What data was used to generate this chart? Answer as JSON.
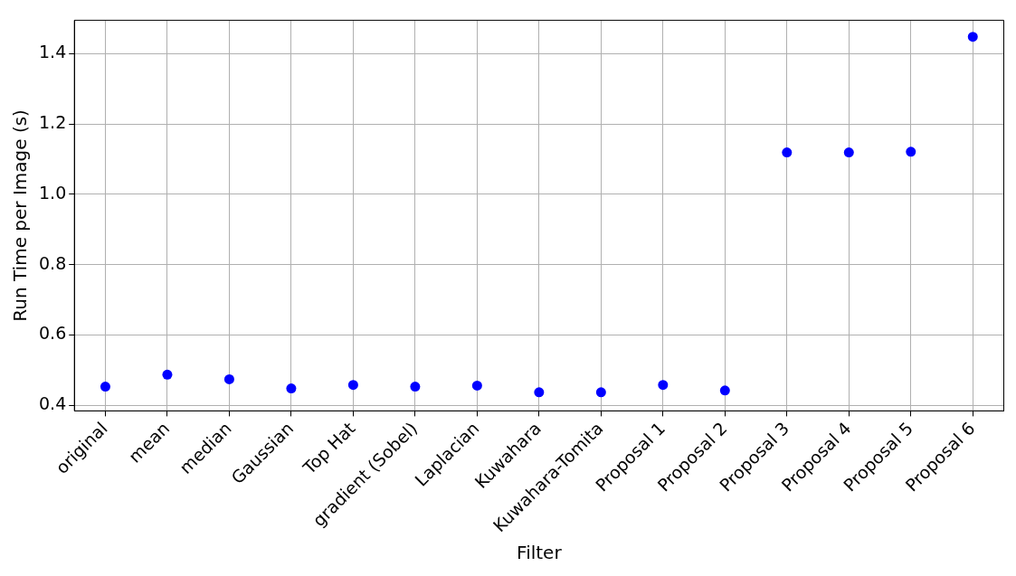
{
  "chart_data": {
    "type": "scatter",
    "xlabel": "Filter",
    "ylabel": "Run Time per Image (s)",
    "categories": [
      "original",
      "mean",
      "median",
      "Gaussian",
      "Top Hat",
      "gradient (Sobel)",
      "Laplacian",
      "Kuwahara",
      "Kuwahara-Tomita",
      "Proposal 1",
      "Proposal 2",
      "Proposal 3",
      "Proposal 4",
      "Proposal 5",
      "Proposal 6"
    ],
    "series": [
      {
        "color": "#0000ff",
        "values": [
          0.453,
          0.487,
          0.474,
          0.448,
          0.458,
          0.453,
          0.456,
          0.437,
          0.437,
          0.458,
          0.442,
          1.119,
          1.119,
          1.121,
          1.448
        ]
      }
    ],
    "ylim": [
      0.384,
      1.495
    ],
    "yticks": [
      0.4,
      0.6,
      0.8,
      {
        "value": 1,
        "label": "1.0"
      },
      1.2,
      1.4
    ],
    "grid": true,
    "marker": "circle",
    "legend": false
  }
}
